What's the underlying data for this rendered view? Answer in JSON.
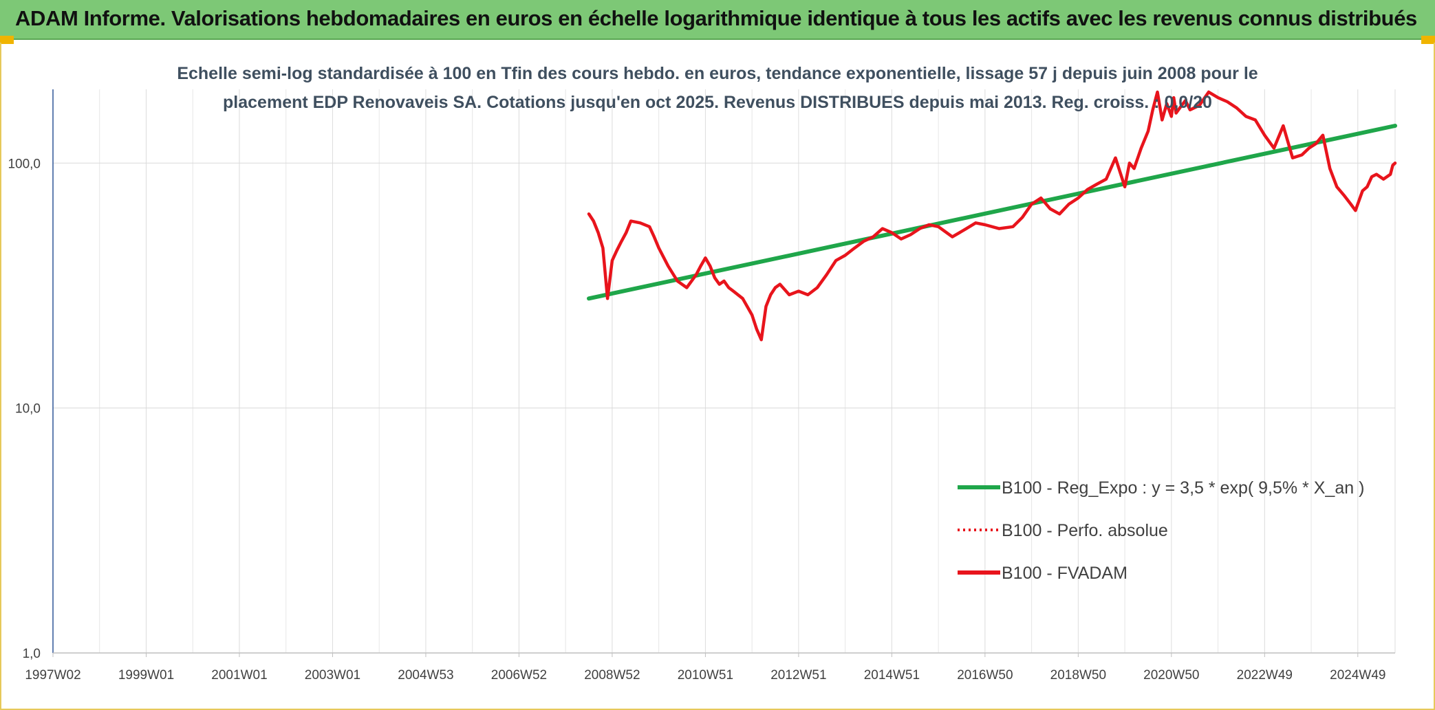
{
  "header": {
    "title": "ADAM Informe. Valorisations hebdomadaires en euros en échelle logarithmique identique à tous les actifs avec les revenus connus distribués"
  },
  "chart_data": {
    "type": "line",
    "title_lines": [
      "Echelle semi-log standardisée à 100 en Tfin des cours hebdo. en euros, tendance exponentielle, lissage 57 j depuis juin 2008 pour le",
      "placement EDP Renovaveis SA. Cotations jusqu'en oct 2025. Revenus DISTRIBUES depuis mai 2013. Reg. croiss. : 0,0/20"
    ],
    "xlabel": "",
    "ylabel": "",
    "y_scale": "log",
    "ylim": [
      1,
      200
    ],
    "xlim": [
      1997.0,
      2025.8
    ],
    "grid": true,
    "legend_position": "bottom-right",
    "y_ticks": [
      {
        "value": 1,
        "label": "1,0"
      },
      {
        "value": 10,
        "label": "10,0"
      },
      {
        "value": 100,
        "label": "100,0"
      }
    ],
    "x_ticks": [
      {
        "value": 1997.0,
        "label": "1997W02"
      },
      {
        "value": 1999.0,
        "label": "1999W01"
      },
      {
        "value": 2001.0,
        "label": "2001W01"
      },
      {
        "value": 2003.0,
        "label": "2003W01"
      },
      {
        "value": 2005.0,
        "label": "2004W53"
      },
      {
        "value": 2007.0,
        "label": "2006W52"
      },
      {
        "value": 2009.0,
        "label": "2008W52"
      },
      {
        "value": 2011.0,
        "label": "2010W51"
      },
      {
        "value": 2013.0,
        "label": "2012W51"
      },
      {
        "value": 2015.0,
        "label": "2014W51"
      },
      {
        "value": 2017.0,
        "label": "2016W50"
      },
      {
        "value": 2019.0,
        "label": "2018W50"
      },
      {
        "value": 2021.0,
        "label": "2020W50"
      },
      {
        "value": 2023.0,
        "label": "2022W49"
      },
      {
        "value": 2025.0,
        "label": "2024W49"
      }
    ],
    "minor_x_grid": [
      1998.0,
      2000.0,
      2002.0,
      2004.0,
      2006.0,
      2008.0,
      2010.0,
      2012.0,
      2014.0,
      2016.0,
      2018.0,
      2020.0,
      2022.0,
      2024.0
    ],
    "series": [
      {
        "name": "B100 - Reg_Expo : y = 3,5 * exp( 9,5% *  X_an )",
        "color": "#1fa64a",
        "style": "solid",
        "x": [
          2008.5,
          2025.8
        ],
        "y": [
          28,
          142
        ]
      },
      {
        "name": "B100 - Perfo. absolue",
        "color": "#e8141c",
        "style": "dotted",
        "x": [],
        "y": []
      },
      {
        "name": "B100 - FVADAM",
        "color": "#e8141c",
        "style": "solid",
        "x": [
          2008.5,
          2008.6,
          2008.7,
          2008.8,
          2008.9,
          2009.0,
          2009.1,
          2009.2,
          2009.3,
          2009.4,
          2009.6,
          2009.8,
          2009.9,
          2010.0,
          2010.2,
          2010.4,
          2010.6,
          2010.8,
          2010.9,
          2011.0,
          2011.1,
          2011.2,
          2011.3,
          2011.4,
          2011.5,
          2011.6,
          2011.8,
          2012.0,
          2012.1,
          2012.2,
          2012.3,
          2012.4,
          2012.5,
          2012.6,
          2012.8,
          2013.0,
          2013.2,
          2013.4,
          2013.6,
          2013.8,
          2014.0,
          2014.2,
          2014.4,
          2014.6,
          2014.8,
          2015.0,
          2015.2,
          2015.4,
          2015.6,
          2015.8,
          2016.0,
          2016.3,
          2016.6,
          2016.8,
          2017.0,
          2017.3,
          2017.6,
          2017.8,
          2018.0,
          2018.2,
          2018.4,
          2018.6,
          2018.8,
          2019.0,
          2019.2,
          2019.4,
          2019.6,
          2019.8,
          2020.0,
          2020.1,
          2020.2,
          2020.35,
          2020.5,
          2020.6,
          2020.7,
          2020.8,
          2020.9,
          2021.0,
          2021.05,
          2021.1,
          2021.2,
          2021.3,
          2021.4,
          2021.6,
          2021.8,
          2022.0,
          2022.2,
          2022.4,
          2022.6,
          2022.8,
          2023.0,
          2023.2,
          2023.4,
          2023.6,
          2023.8,
          2023.95,
          2024.1,
          2024.25,
          2024.4,
          2024.55,
          2024.7,
          2024.85,
          2024.95,
          2025.1,
          2025.2,
          2025.3,
          2025.4,
          2025.55,
          2025.7,
          2025.75,
          2025.8
        ],
        "y": [
          62,
          58,
          52,
          45,
          28,
          40,
          44,
          48,
          52,
          58,
          57,
          55,
          50,
          45,
          38,
          33,
          31,
          35,
          38,
          41,
          38,
          34,
          32,
          33,
          31,
          30,
          28,
          24,
          21,
          19,
          26,
          29,
          31,
          32,
          29,
          30,
          29,
          31,
          35,
          40,
          42,
          45,
          48,
          50,
          54,
          52,
          49,
          51,
          54,
          56,
          55,
          50,
          54,
          57,
          56,
          54,
          55,
          60,
          68,
          72,
          65,
          62,
          68,
          72,
          78,
          82,
          86,
          105,
          80,
          100,
          95,
          115,
          135,
          165,
          195,
          150,
          175,
          155,
          185,
          160,
          170,
          180,
          165,
          172,
          195,
          185,
          178,
          168,
          155,
          150,
          130,
          115,
          142,
          105,
          108,
          115,
          120,
          130,
          95,
          80,
          74,
          68,
          64,
          77,
          80,
          88,
          90,
          86,
          90,
          98,
          100
        ]
      }
    ]
  }
}
